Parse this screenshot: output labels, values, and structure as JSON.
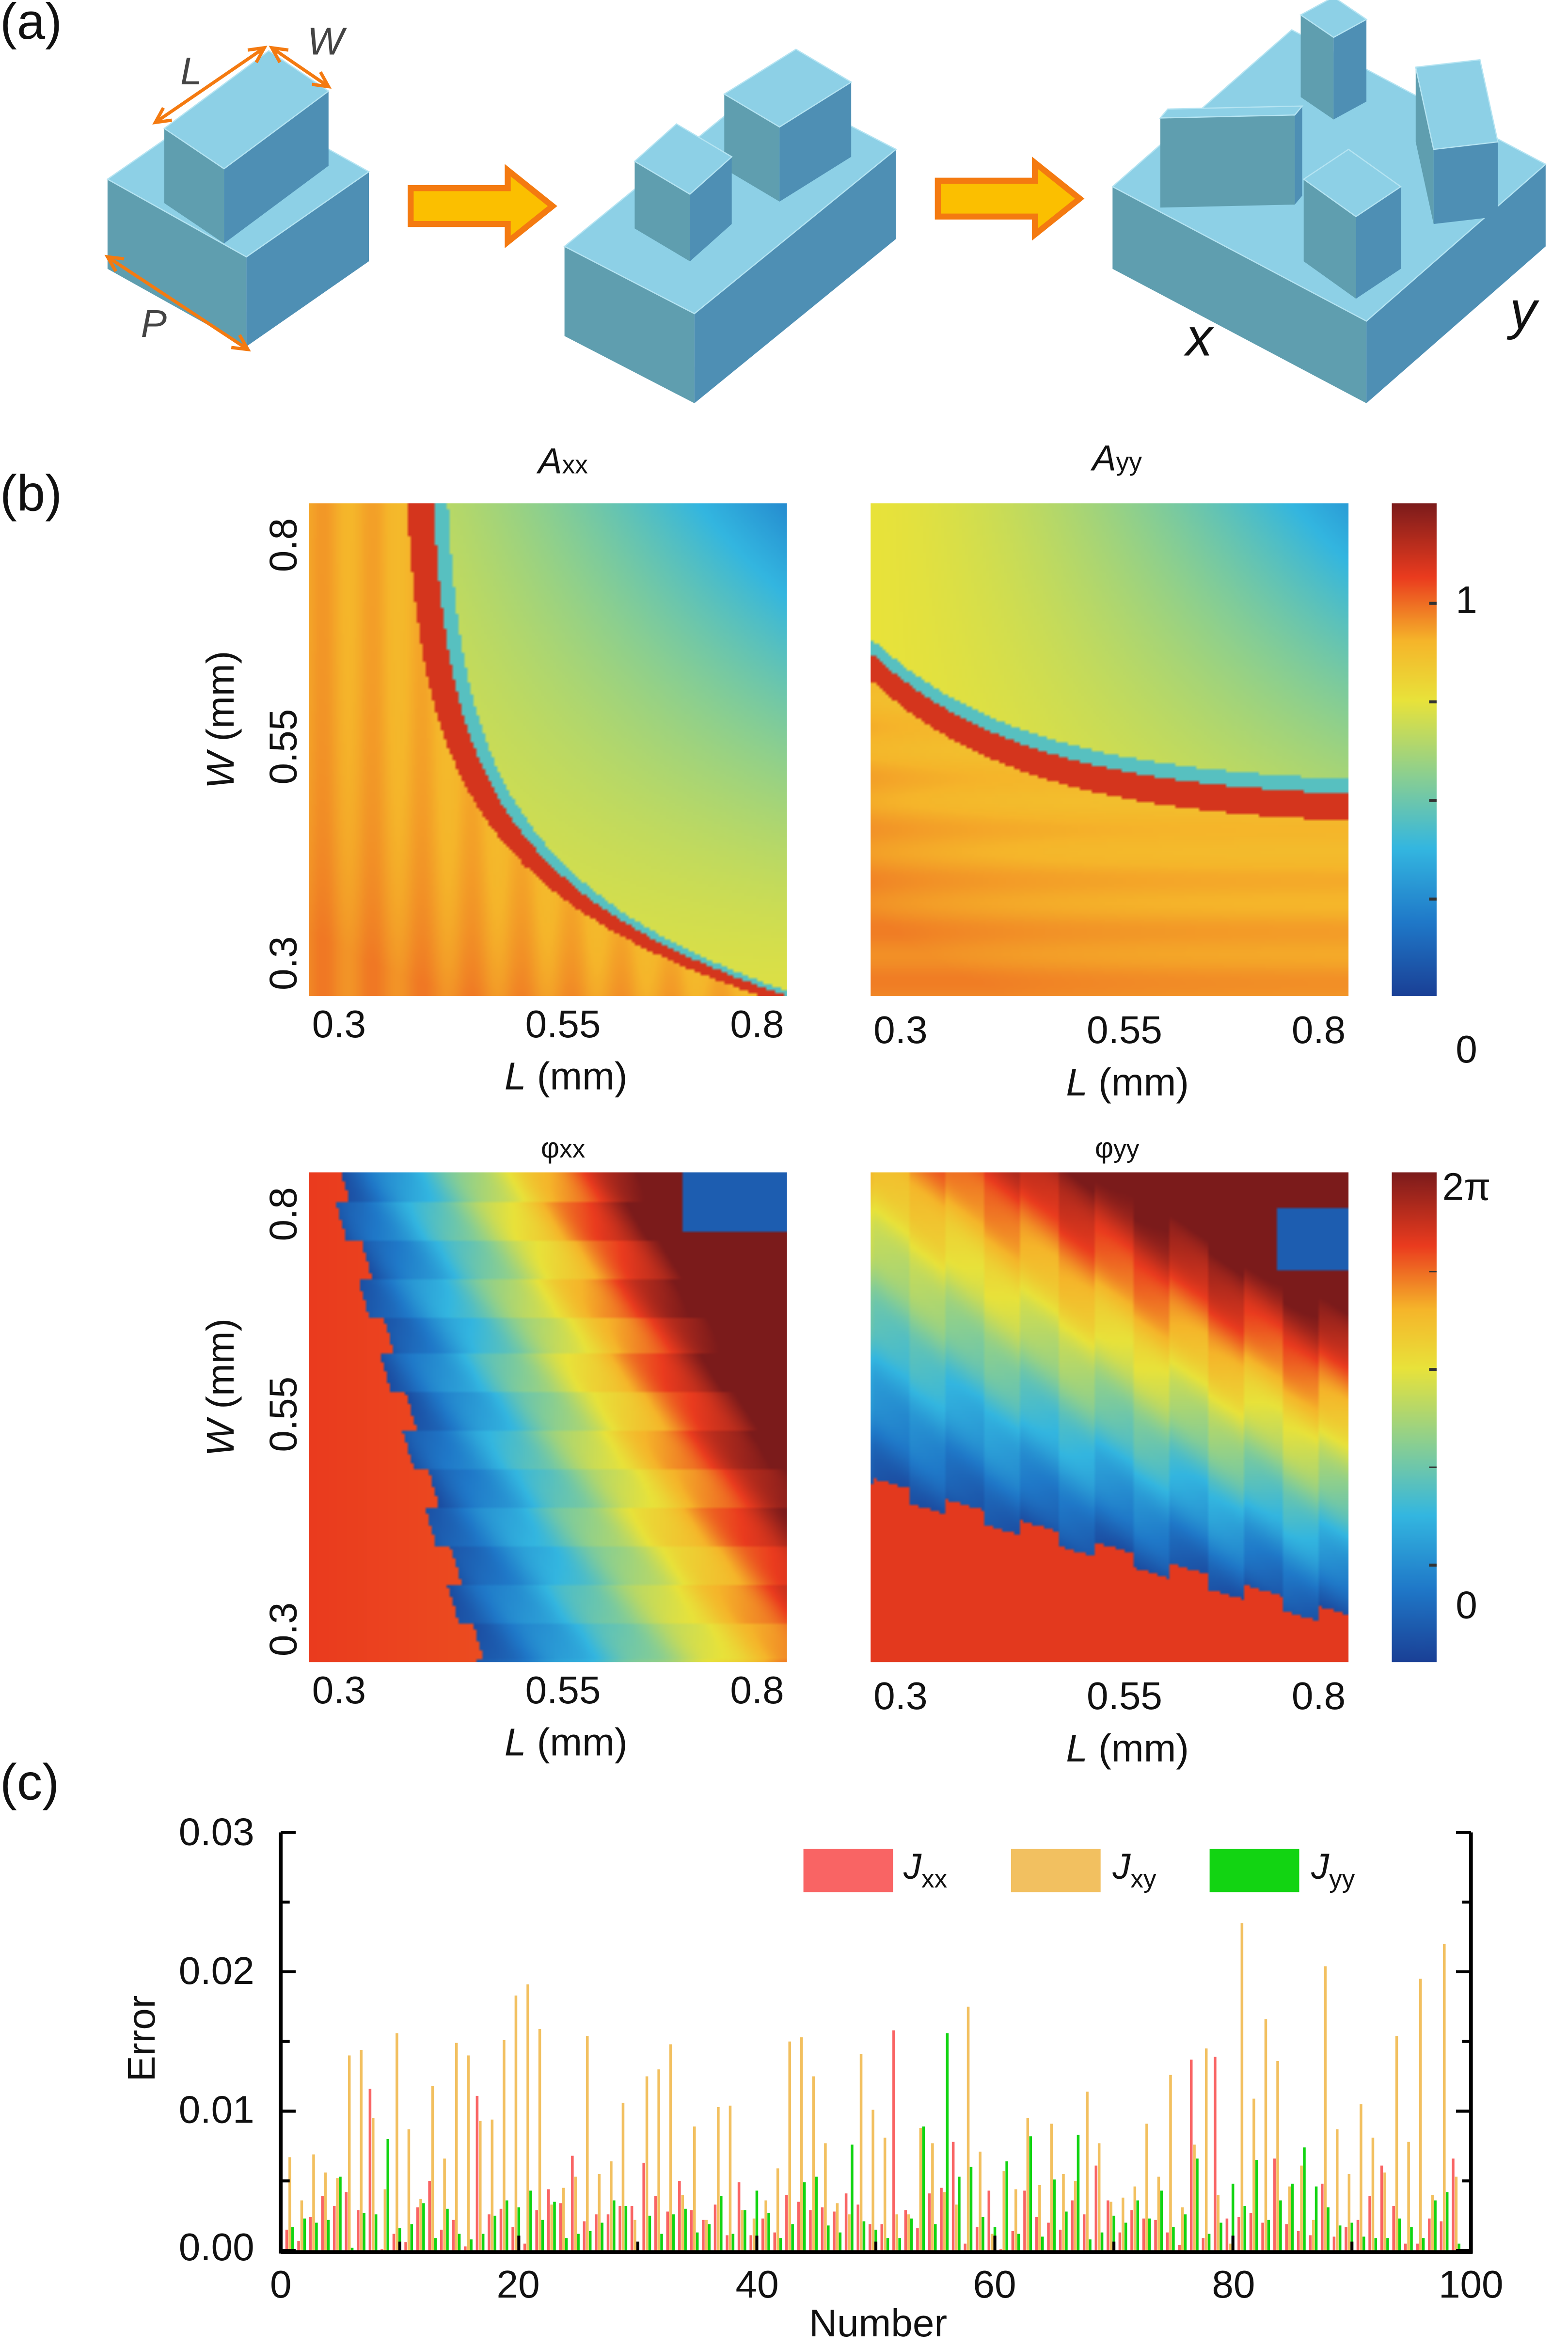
{
  "panel_labels": {
    "a": "(a)",
    "b": "(b)",
    "c": "(c)"
  },
  "panel_a": {
    "dimension_labels": {
      "L": "L",
      "W": "W",
      "P": "P"
    },
    "axis_labels": {
      "x": "x",
      "y": "y"
    },
    "colors": {
      "block_top": "#8dd0e6",
      "block_left": "#5f9eaf",
      "block_right": "#4e8fb4",
      "arrow_fill": "#fbbf00",
      "arrow_edge": "#f47a10",
      "dimension_arrow": "#f47a10"
    }
  },
  "panel_b": {
    "colormap": [
      "#1a3f95",
      "#1f78c8",
      "#33b6e0",
      "#8ccf8f",
      "#e8e23a",
      "#f5b52a",
      "#ea3b1e",
      "#7b1b1b"
    ],
    "maps": [
      {
        "title_main": "A",
        "title_sub": "xx",
        "title_italic": true,
        "xlabel_var": "L",
        "xlabel_unit": " (mm)",
        "ylabel_var": "W",
        "ylabel_unit": " (mm)",
        "xticks": [
          "0.3",
          "0.55",
          "0.8"
        ],
        "yticks": [
          "0.8",
          "0.55",
          "0.3"
        ],
        "show_ylabel": true
      },
      {
        "title_main": "A",
        "title_sub": "yy",
        "title_italic": true,
        "xlabel_var": "L",
        "xlabel_unit": " (mm)",
        "xticks": [
          "0.3",
          "0.55",
          "0.8"
        ],
        "show_ylabel": false
      },
      {
        "title_main": "φ",
        "title_sub": "xx",
        "title_italic": false,
        "xlabel_var": "L",
        "xlabel_unit": " (mm)",
        "ylabel_var": "W",
        "ylabel_unit": " (mm)",
        "xticks": [
          "0.3",
          "0.55",
          "0.8"
        ],
        "yticks": [
          "0.8",
          "0.55",
          "0.3"
        ],
        "show_ylabel": true
      },
      {
        "title_main": "φ",
        "title_sub": "yy",
        "title_italic": false,
        "xlabel_var": "L",
        "xlabel_unit": " (mm)",
        "xticks": [
          "0.3",
          "0.55",
          "0.8"
        ],
        "show_ylabel": false
      }
    ],
    "colorbars": [
      {
        "labels": [
          "1",
          "0"
        ],
        "range": [
          0,
          1.2
        ]
      },
      {
        "labels": [
          "2π",
          "0"
        ],
        "range": [
          "0",
          "2π"
        ]
      }
    ]
  },
  "chart_data": [
    {
      "type": "heatmap",
      "title": "Axx",
      "xlabel": "L (mm)",
      "ylabel": "W (mm)",
      "xlim": [
        0.3,
        0.8
      ],
      "ylim": [
        0.3,
        0.8
      ],
      "xticks": [
        0.3,
        0.55,
        0.8
      ],
      "yticks": [
        0.3,
        0.55,
        0.8
      ],
      "colorbar": {
        "ticks": [
          "0",
          "1"
        ]
      }
    },
    {
      "type": "heatmap",
      "title": "Ayy",
      "xlabel": "L (mm)",
      "xlim": [
        0.3,
        0.8
      ],
      "ylim": [
        0.3,
        0.8
      ],
      "xticks": [
        0.3,
        0.55,
        0.8
      ],
      "colorbar": {
        "ticks": [
          "0",
          "1"
        ]
      }
    },
    {
      "type": "heatmap",
      "title": "φxx",
      "xlabel": "L (mm)",
      "ylabel": "W (mm)",
      "xlim": [
        0.3,
        0.8
      ],
      "ylim": [
        0.3,
        0.8
      ],
      "xticks": [
        0.3,
        0.55,
        0.8
      ],
      "yticks": [
        0.3,
        0.55,
        0.8
      ],
      "colorbar": {
        "ticks": [
          "0",
          "2π"
        ]
      }
    },
    {
      "type": "heatmap",
      "title": "φyy",
      "xlabel": "L (mm)",
      "xlim": [
        0.3,
        0.8
      ],
      "ylim": [
        0.3,
        0.8
      ],
      "xticks": [
        0.3,
        0.55,
        0.8
      ],
      "colorbar": {
        "ticks": [
          "0",
          "2π"
        ]
      }
    },
    {
      "type": "bar",
      "xlabel": "Number",
      "ylabel": "Error",
      "xlim": [
        0,
        100
      ],
      "ylim": [
        0,
        0.03
      ],
      "xticks": [
        "0",
        "20",
        "40",
        "60",
        "80",
        "100"
      ],
      "yticks": [
        "0.00",
        "0.01",
        "0.02",
        "0.03"
      ],
      "grid": false,
      "legend_placement": "top-right",
      "x": [
        1,
        2,
        3,
        4,
        5,
        6,
        7,
        8,
        9,
        10,
        11,
        12,
        13,
        14,
        15,
        16,
        17,
        18,
        19,
        20,
        21,
        22,
        23,
        24,
        25,
        26,
        27,
        28,
        29,
        30,
        31,
        32,
        33,
        34,
        35,
        36,
        37,
        38,
        39,
        40,
        41,
        42,
        43,
        44,
        45,
        46,
        47,
        48,
        49,
        50,
        51,
        52,
        53,
        54,
        55,
        56,
        57,
        58,
        59,
        60,
        61,
        62,
        63,
        64,
        65,
        66,
        67,
        68,
        69,
        70,
        71,
        72,
        73,
        74,
        75,
        76,
        77,
        78,
        79,
        80,
        81,
        82,
        83,
        84,
        85,
        86,
        87,
        88,
        89,
        90,
        91,
        92,
        93,
        94,
        95,
        96,
        97,
        98,
        99
      ],
      "series": [
        {
          "name": "Jxx",
          "name_main": "J",
          "name_sub": "xx",
          "color": "#f96464",
          "values": [
            0.0015,
            0.0007,
            0.0024,
            0.0039,
            0.0032,
            0.0042,
            0.0029,
            0.0116,
            0.0001,
            0.0012,
            0.0006,
            0.0031,
            0.005,
            0.0015,
            0.0022,
            0.0003,
            0.0111,
            0.0026,
            0.003,
            0.0017,
            0.0005,
            0.0029,
            0.0044,
            0.0034,
            0.0068,
            0.0021,
            0.0026,
            0.0026,
            0.0032,
            0.0032,
            0.0063,
            0.0039,
            0.0028,
            0.005,
            0.0029,
            0.0022,
            0.0033,
            0.0011,
            0.0049,
            0.0011,
            0.0023,
            0.0013,
            0.004,
            0.0035,
            0.0029,
            0.0031,
            0.0028,
            0.0041,
            0.0033,
            0.0019,
            0.0019,
            0.0158,
            0.0029,
            0.0016,
            0.0041,
            0.0045,
            0.0078,
            0.0005,
            0.0017,
            0.0043,
            0.0001,
            0.0014,
            0.0043,
            0.0024,
            0.002,
            0.0015,
            0.0036,
            0.0026,
            0.0061,
            0.0036,
            0.0013,
            0.0029,
            0.0023,
            0.0022,
            0.0013,
            0.0004,
            0.0137,
            0.0009,
            0.0139,
            0.0023,
            0.0024,
            0.0027,
            0.002,
            0.0066,
            0.0019,
            0.0014,
            0.0011,
            0.0048,
            0.001,
            0.0017,
            0.0022,
            0.0039,
            0.0061,
            0.0032,
            0.0005,
            0.0005,
            0.0023,
            0.0021,
            0.0066
          ]
        },
        {
          "name": "Jxy",
          "name_main": "J",
          "name_sub": "xy",
          "color": "#f2c060",
          "values": [
            0.0067,
            0.0036,
            0.0069,
            0.0056,
            0.0052,
            0.014,
            0.0144,
            0.0095,
            0.0044,
            0.0156,
            0.0087,
            0.0037,
            0.0118,
            0.0066,
            0.0149,
            0.014,
            0.0093,
            0.0094,
            0.0151,
            0.0183,
            0.0191,
            0.0159,
            0.0033,
            0.0045,
            0.0053,
            0.0154,
            0.0055,
            0.0064,
            0.0106,
            0.0022,
            0.0125,
            0.013,
            0.0148,
            0.004,
            0.0089,
            0.0022,
            0.0103,
            0.0104,
            0.0029,
            0.0023,
            0.0036,
            0.0059,
            0.015,
            0.0153,
            0.0125,
            0.0077,
            0.0034,
            0.0026,
            0.0141,
            0.0101,
            0.0081,
            0.0026,
            0.0026,
            0.0088,
            0.0077,
            0.0042,
            0.0033,
            0.0175,
            0.0071,
            0.0012,
            0.0057,
            0.0044,
            0.0095,
            0.0047,
            0.0091,
            0.0055,
            0.005,
            0.0114,
            0.0077,
            0.0035,
            0.0038,
            0.0046,
            0.0091,
            0.0053,
            0.0126,
            0.0031,
            0.0076,
            0.0145,
            0.004,
            0.0005,
            0.0235,
            0.0109,
            0.0166,
            0.0136,
            0.0046,
            0.0061,
            0.0022,
            0.0204,
            0.0087,
            0.0055,
            0.0105,
            0.0081,
            0.0056,
            0.0154,
            0.0078,
            0.0195,
            0.004,
            0.022,
            0.0053
          ]
        },
        {
          "name": "Jyy",
          "name_main": "J",
          "name_sub": "yy",
          "color": "#12d412",
          "values": [
            0.0017,
            0.0023,
            0.002,
            0.0022,
            0.0053,
            0.0002,
            0.0027,
            0.0026,
            0.008,
            0.0016,
            0.0019,
            0.0034,
            0.0009,
            0.003,
            0.0012,
            0.0008,
            0.0012,
            0.0025,
            0.0036,
            0.0031,
            0.0043,
            0.0022,
            0.0035,
            0.0009,
            0.0012,
            0.0014,
            0.002,
            0.0036,
            0.0032,
            0.0004,
            0.0025,
            0.0012,
            0.0026,
            0.003,
            0.0013,
            0.0019,
            0.0039,
            0.0012,
            0.0029,
            0.0043,
            0.0027,
            0.0009,
            0.0019,
            0.0049,
            0.0053,
            0.0018,
            0.0013,
            0.0076,
            0.0021,
            0.0015,
            0.0009,
            0.0009,
            0.0023,
            0.0089,
            0.0019,
            0.0156,
            0.0053,
            0.006,
            0.0024,
            0.0017,
            0.0064,
            0.0012,
            0.0082,
            0.001,
            0.0051,
            0.0028,
            0.0083,
            0.0008,
            0.0013,
            0.0025,
            0.002,
            0.0036,
            0.0023,
            0.0043,
            0.0017,
            0.0026,
            0.0066,
            0.0012,
            0.002,
            0.0048,
            0.0032,
            0.0065,
            0.0022,
            0.0036,
            0.0048,
            0.0074,
            0.0046,
            0.0031,
            0.0018,
            0.002,
            0.001,
            0.0009,
            0.0009,
            0.0023,
            0.0017,
            0.0009,
            0.0036,
            0.0042,
            0.0005
          ]
        }
      ]
    }
  ]
}
